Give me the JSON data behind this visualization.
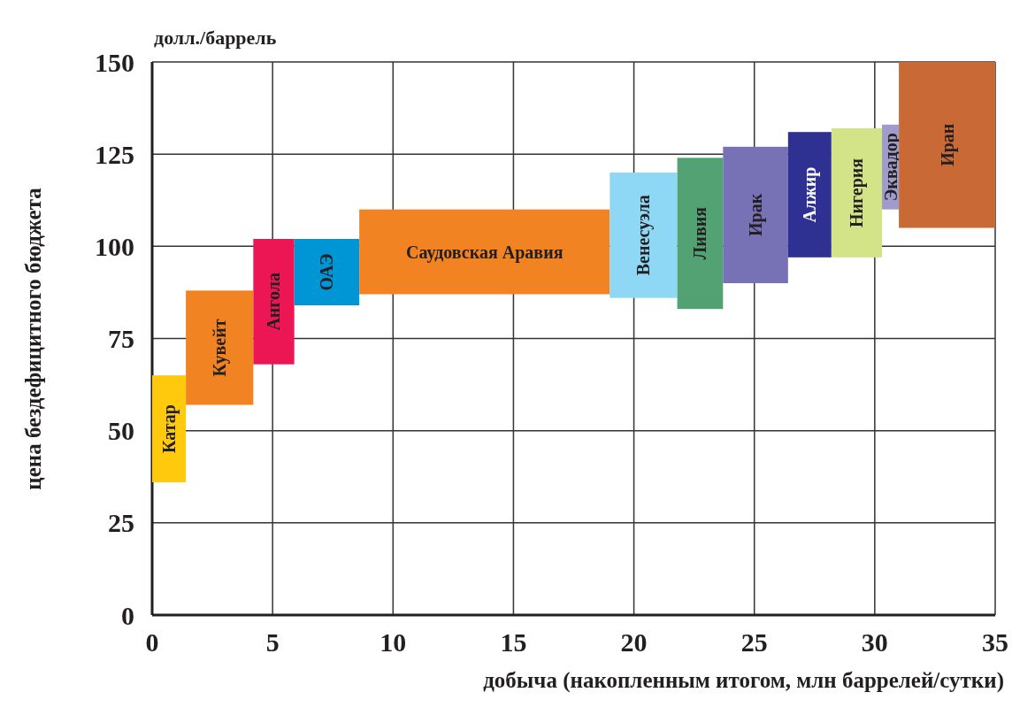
{
  "chart_data": {
    "type": "histogram",
    "xlabel": "добыча (накопленным итогом, млн баррелей/сутки)",
    "ylabel": "цена бездефицитного бюджета",
    "annotations": [
      "долл./баррель"
    ],
    "categories": [
      "Катар",
      "Кувейт",
      "Ангола",
      "ОАЭ",
      "Саудовская Аравия",
      "Венесуэла",
      "Ливия",
      "Ирак",
      "Алжир",
      "Нигерия",
      "Эквадор",
      "Иран"
    ],
    "bins": [
      0,
      1.4,
      4.2,
      5.9,
      8.6,
      19,
      21.8,
      23.7,
      26.4,
      28.2,
      30.3,
      31,
      35
    ],
    "base": [
      36,
      57,
      68,
      84,
      87,
      86,
      83,
      90,
      97,
      97,
      110,
      105
    ],
    "values": [
      29,
      31,
      34,
      18,
      23,
      34,
      41,
      37,
      34,
      35,
      23,
      45
    ],
    "colors": [
      "#ffc90e",
      "#f28322",
      "#ec1654",
      "#0096d6",
      "#f28322",
      "#8fd8f5",
      "#52a273",
      "#7771b5",
      "#2e3192",
      "#d3e388",
      "#9f9ccc",
      "#c96a36"
    ],
    "xlim": [
      0,
      35
    ],
    "xticks": [
      0,
      5,
      10,
      15,
      20,
      25,
      30,
      35
    ],
    "ylim": [
      0,
      150
    ],
    "yticks": [
      0,
      25,
      50,
      75,
      100,
      125,
      150
    ],
    "grid": true
  }
}
